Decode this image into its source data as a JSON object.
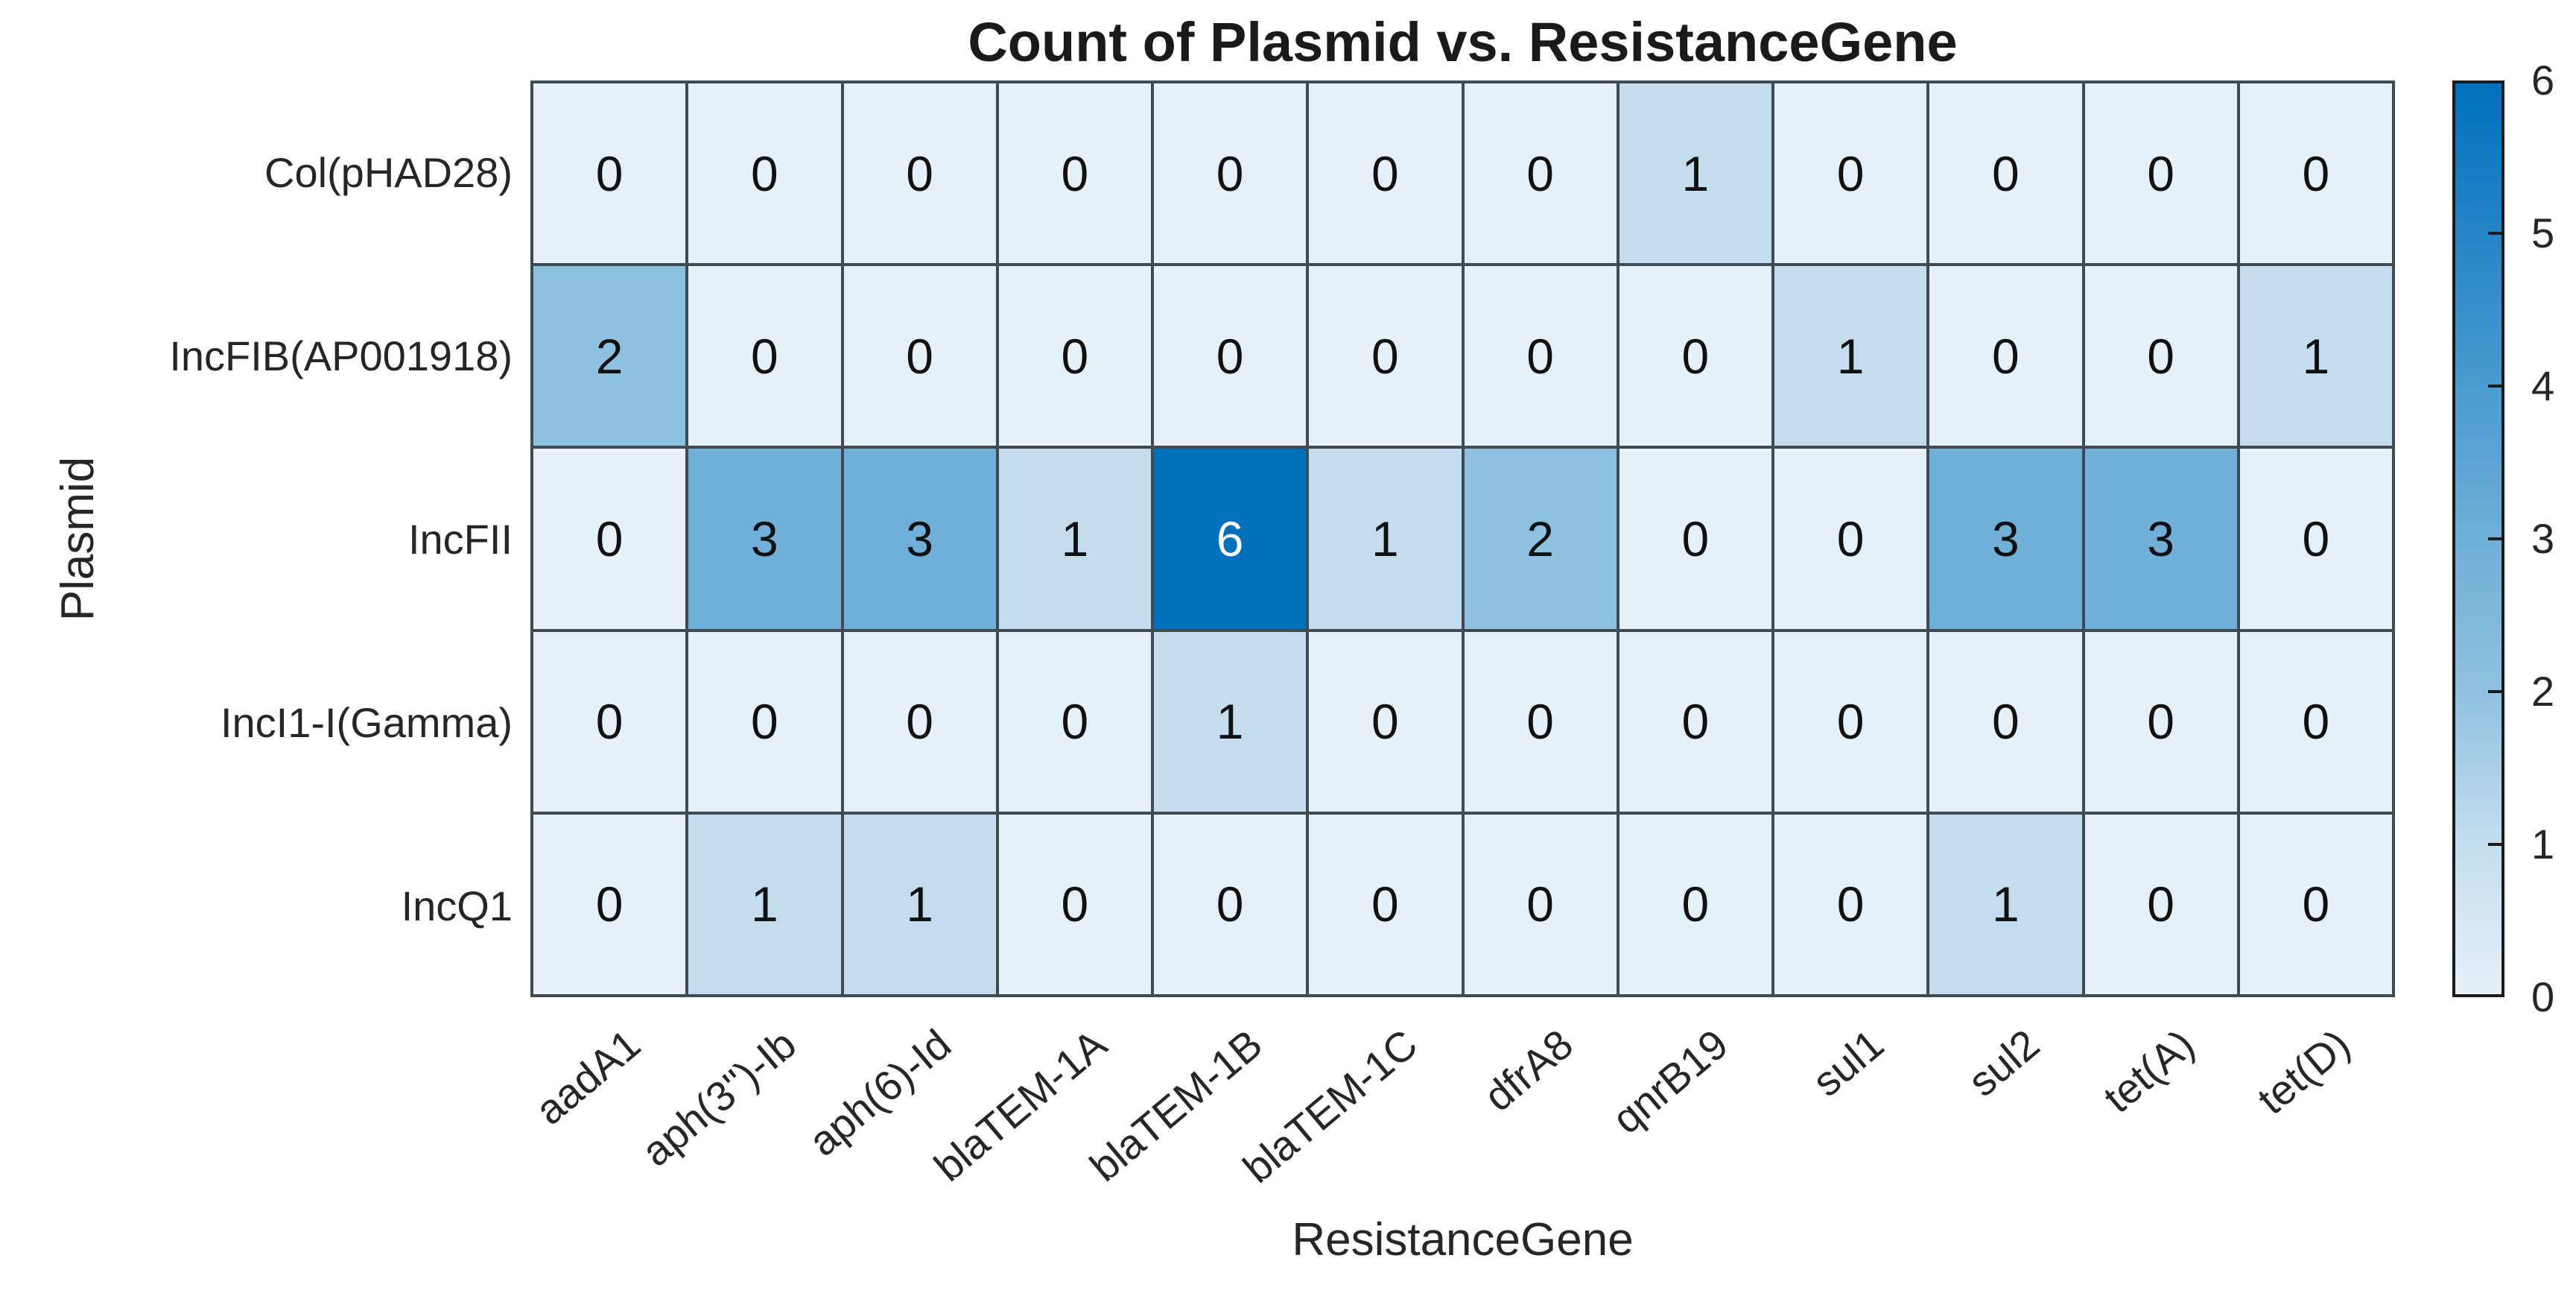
{
  "title": "Count of Plasmid vs. ResistanceGene",
  "chart_data": {
    "type": "heatmap",
    "title": "Count of Plasmid vs. ResistanceGene",
    "xlabel": "ResistanceGene",
    "ylabel": "Plasmid",
    "x_categories": [
      "aadA1",
      "aph(3'')-Ib",
      "aph(6)-Id",
      "blaTEM-1A",
      "blaTEM-1B",
      "blaTEM-1C",
      "dfrA8",
      "qnrB19",
      "sul1",
      "sul2",
      "tet(A)",
      "tet(D)"
    ],
    "y_categories": [
      "Col(pHAD28)",
      "IncFIB(AP001918)",
      "IncFII",
      "IncI1-I(Gamma)",
      "IncQ1"
    ],
    "values": [
      [
        0,
        0,
        0,
        0,
        0,
        0,
        0,
        1,
        0,
        0,
        0,
        0
      ],
      [
        2,
        0,
        0,
        0,
        0,
        0,
        0,
        0,
        1,
        0,
        0,
        1
      ],
      [
        0,
        3,
        3,
        1,
        6,
        1,
        2,
        0,
        0,
        3,
        3,
        0
      ],
      [
        0,
        0,
        0,
        0,
        1,
        0,
        0,
        0,
        0,
        0,
        0,
        0
      ],
      [
        0,
        1,
        1,
        0,
        0,
        0,
        0,
        0,
        0,
        1,
        0,
        0
      ]
    ],
    "colorbar": {
      "min": 0,
      "max": 6,
      "ticks": [
        0,
        1,
        2,
        3,
        4,
        5,
        6
      ],
      "position": "right"
    },
    "color_scale": {
      "0": "#e6f0f8",
      "1": "#c3ddee",
      "2": "#8ec1e0",
      "3": "#6fafd8",
      "4": "#4a9bcf",
      "5": "#2685c6",
      "6": "#0070bd"
    },
    "grid_color": "#3f4a52",
    "cell_text_color": "#111111",
    "cell_text_light_color": "#ffffff",
    "light_text_min_value": 5,
    "grid_on": true,
    "legend_position": "none"
  }
}
